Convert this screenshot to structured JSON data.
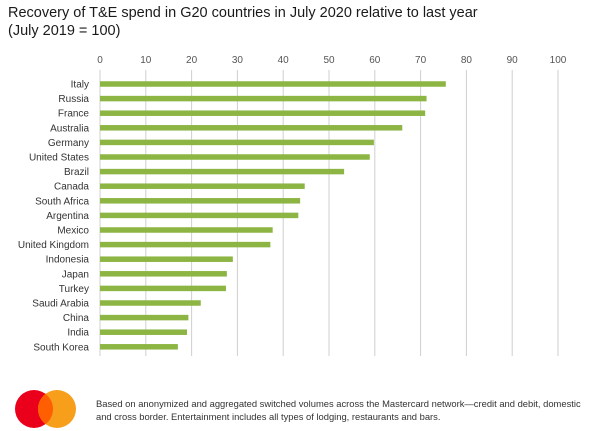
{
  "title": "Recovery of T&E spend in G20 countries in July 2020 relative to last year",
  "subtitle": "(July 2019 = 100)",
  "chart_data": {
    "type": "bar",
    "orientation": "horizontal",
    "categories": [
      "Italy",
      "Russia",
      "France",
      "Australia",
      "Germany",
      "United States",
      "Brazil",
      "Canada",
      "South Africa",
      "Argentina",
      "Mexico",
      "United Kingdom",
      "Indonesia",
      "Japan",
      "Turkey",
      "Saudi Arabia",
      "China",
      "India",
      "South Korea"
    ],
    "values": [
      75.5,
      71.3,
      71.0,
      66.0,
      59.8,
      58.9,
      53.3,
      44.7,
      43.7,
      43.3,
      37.7,
      37.2,
      29.0,
      27.7,
      27.5,
      22.0,
      19.3,
      19.0,
      17.0
    ],
    "xlim": [
      0,
      100
    ],
    "xticks": [
      "0",
      "10",
      "20",
      "30",
      "40",
      "50",
      "60",
      "70",
      "80",
      "90",
      "100"
    ],
    "grid": true,
    "color": "#8cb543"
  },
  "footer": "Based on anonymized and aggregated switched volumes across the Mastercard network—credit and debit, domestic and cross border. Entertainment includes all types of lodging, restaurants and bars.",
  "logo": {
    "left_color": "#eb001b",
    "right_color": "#f79e1b",
    "overlap_color": "#ff5f00"
  }
}
